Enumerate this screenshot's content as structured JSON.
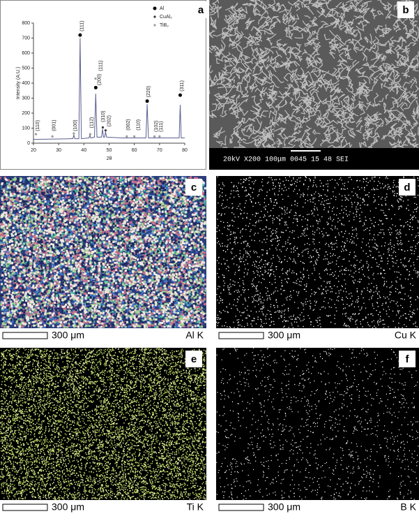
{
  "chart_data": {
    "type": "line",
    "xlabel": "2θ",
    "ylabel": "Intensity (A.U.)",
    "xlim": [
      20,
      80
    ],
    "ylim": [
      0,
      800
    ],
    "xticks": [
      20,
      30,
      40,
      50,
      60,
      70,
      80
    ],
    "yticks": [
      0,
      100,
      200,
      300,
      400,
      500,
      600,
      700,
      800
    ],
    "color": "#5a5f8f",
    "legend": "upper right",
    "x": [
      20,
      30,
      35,
      35.6,
      36,
      36.4,
      38,
      38.5,
      39,
      42,
      42.4,
      42.7,
      43,
      44.2,
      44.7,
      45.2,
      47,
      47.4,
      47.8,
      48.2,
      48.6,
      49,
      55,
      64.6,
      65.1,
      65.6,
      70,
      77.8,
      78.2,
      78.6,
      80
    ],
    "values": [
      25,
      28,
      30,
      30,
      55,
      30,
      30,
      700,
      30,
      35,
      55,
      35,
      35,
      40,
      330,
      40,
      40,
      95,
      40,
      40,
      75,
      40,
      35,
      35,
      260,
      35,
      35,
      35,
      255,
      35,
      35
    ],
    "series": [
      {
        "name": "Al",
        "color": "#000000",
        "x": [
          38.5,
          44.7,
          65.1,
          78.2
        ],
        "values": [
          720,
          370,
          280,
          320
        ]
      },
      {
        "name": "CuAl₂",
        "color": "#333333",
        "x": [
          47.5,
          48.6
        ],
        "values": [
          105,
          85
        ]
      },
      {
        "name": "TiB₂",
        "color": "#9a9a9a",
        "x": [
          21,
          27.5,
          36,
          42.5,
          44.6,
          57,
          60,
          68,
          70
        ],
        "values": [
          60,
          45,
          65,
          60,
          430,
          45,
          45,
          45,
          45
        ]
      }
    ],
    "annotations": [
      {
        "text": "(110)",
        "x": 21,
        "y": 80
      },
      {
        "text": "(001)",
        "x": 27.5,
        "y": 80
      },
      {
        "text": "(100)",
        "x": 36,
        "y": 80
      },
      {
        "text": "(111)",
        "x": 38.5,
        "y": 745
      },
      {
        "text": "(112)",
        "x": 42.5,
        "y": 100
      },
      {
        "text": "(310)",
        "x": 47,
        "y": 140
      },
      {
        "text": "(200)",
        "x": 45.5,
        "y": 385
      },
      {
        "text": "(111)",
        "x": 46,
        "y": 480
      },
      {
        "text": "(202)",
        "x": 49.3,
        "y": 110
      },
      {
        "text": "(002)",
        "x": 57,
        "y": 85
      },
      {
        "text": "(110)",
        "x": 61,
        "y": 85
      },
      {
        "text": "(220)",
        "x": 65,
        "y": 305
      },
      {
        "text": "(102)",
        "x": 68,
        "y": 75
      },
      {
        "text": "(111)",
        "x": 70,
        "y": 75
      },
      {
        "text": "(311)",
        "x": 78.2,
        "y": 345
      }
    ]
  },
  "panels": [
    "a",
    "b",
    "c",
    "d",
    "e",
    "f"
  ],
  "sem_caption": "20kV   X200   100μm   0045 15 48 SEI",
  "maps": [
    {
      "scale": "300 μm",
      "element": "Al K"
    },
    {
      "scale": "300 μm",
      "element": "Cu K"
    },
    {
      "scale": "300 μm",
      "element": "Ti K"
    },
    {
      "scale": "300 μm",
      "element": "B K"
    }
  ]
}
